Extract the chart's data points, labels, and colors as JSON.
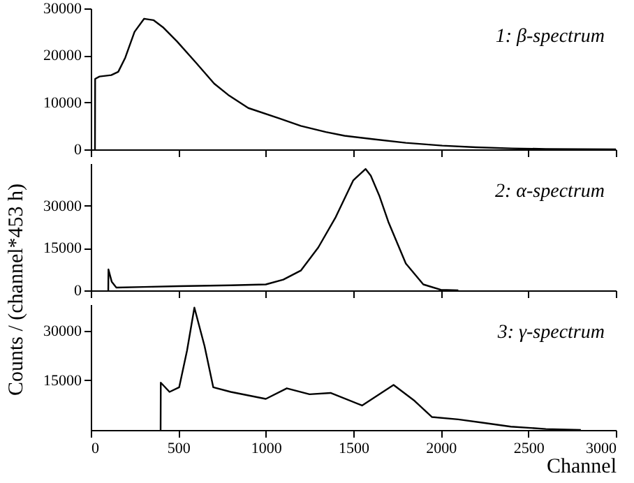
{
  "chart_data": [
    {
      "type": "line",
      "xlim": [
        0,
        3000
      ],
      "xticks": [
        0,
        500,
        1000,
        1500,
        2000,
        2500,
        3000
      ],
      "ylim": [
        0,
        30000
      ],
      "yticks": [
        0,
        10000,
        20000,
        30000
      ],
      "tick_labels": "y",
      "series": [
        {
          "name": "1: β-spectrum",
          "color": "#000000",
          "x": [
            24,
            25,
            50,
            117,
            157,
            197,
            250,
            305,
            358,
            412,
            492,
            600,
            705,
            785,
            900,
            1077,
            1200,
            1343,
            1450,
            1609,
            1800,
            2008,
            2200,
            2407,
            2600,
            2800,
            3000
          ],
          "values": [
            0,
            15000,
            15500,
            15800,
            16500,
            19500,
            25000,
            27800,
            27500,
            26000,
            23000,
            18500,
            14000,
            11600,
            8800,
            6600,
            5000,
            3700,
            2900,
            2200,
            1400,
            800,
            450,
            200,
            100,
            50,
            0
          ]
        }
      ]
    },
    {
      "type": "line",
      "xlim": [
        0,
        3000
      ],
      "xticks": [
        0,
        500,
        1000,
        1500,
        2000,
        2500,
        3000
      ],
      "ylim": [
        0,
        45000
      ],
      "yticks": [
        0,
        15000,
        30000
      ],
      "tick_labels": "y",
      "ylabel": "Counts / (channel*453 h)",
      "series": [
        {
          "name": "2: α-spectrum",
          "color": "#000000",
          "x": [
            100,
            101,
            120,
            146,
            300,
            500,
            800,
            1000,
            1100,
            1200,
            1300,
            1400,
            1500,
            1570,
            1600,
            1650,
            1700,
            1800,
            1900,
            2000,
            2100
          ],
          "values": [
            0,
            7400,
            3000,
            1000,
            1200,
            1500,
            1800,
            2100,
            3800,
            7000,
            15200,
            26000,
            39000,
            43000,
            40600,
            33300,
            24300,
            9500,
            2100,
            200,
            0
          ]
        }
      ]
    },
    {
      "type": "line",
      "xlim": [
        0,
        3000
      ],
      "xticks": [
        0,
        500,
        1000,
        1500,
        2000,
        2500,
        3000
      ],
      "ylim": [
        0,
        38000
      ],
      "yticks": [
        15000,
        30000
      ],
      "xlabel": "Channel",
      "series": [
        {
          "name": "3: γ-spectrum",
          "color": "#000000",
          "x": [
            399,
            400,
            450,
            505,
            550,
            592,
            650,
            700,
            800,
            1000,
            1120,
            1250,
            1370,
            1550,
            1730,
            1850,
            1950,
            2100,
            2250,
            2400,
            2600,
            2800
          ],
          "values": [
            0,
            14300,
            11500,
            12900,
            24000,
            37000,
            25400,
            12900,
            11500,
            9400,
            12600,
            10800,
            11200,
            7400,
            13600,
            8800,
            3900,
            3200,
            2100,
            1000,
            300,
            0
          ]
        }
      ]
    }
  ]
}
